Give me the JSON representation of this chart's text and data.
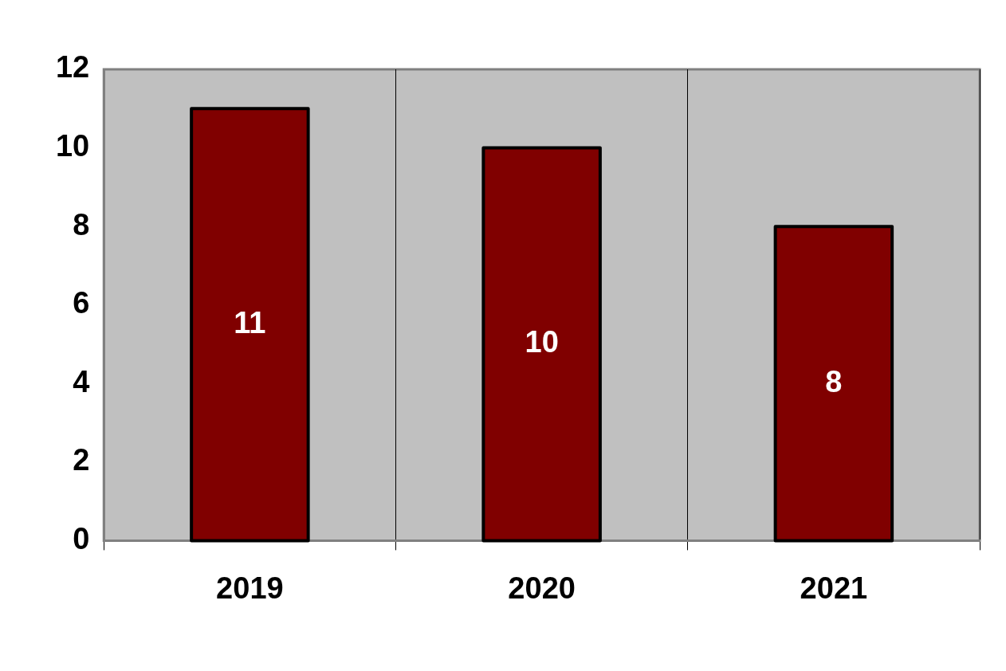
{
  "chart_data": {
    "type": "bar",
    "categories": [
      "2019",
      "2020",
      "2021"
    ],
    "values": [
      11,
      10,
      8
    ],
    "color": "#800000",
    "ylim": [
      0,
      12
    ],
    "yticks": [
      0,
      2,
      4,
      6,
      8,
      10,
      12
    ],
    "grid": "x",
    "data_labels": true,
    "legend": false
  }
}
